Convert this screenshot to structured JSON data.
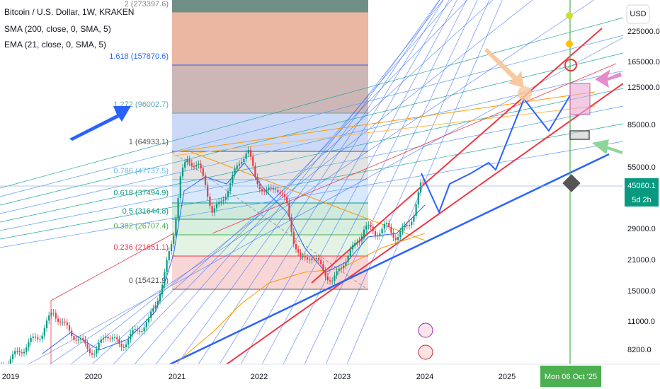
{
  "header": {
    "symbol": "Bitcoin / U.S. Dollar, 1W, KRAKEN",
    "indicators": [
      "SMA (200, close, 0, SMA, 5)",
      "EMA (21, close, 0, SMA, 5)"
    ]
  },
  "price_axis": {
    "currency": "USD",
    "labels": [
      "225000.0",
      "165000.0",
      "125000.0",
      "85000.0",
      "55000.0",
      "29000.0",
      "21000.0",
      "15000.0",
      "11000.0",
      "8200.0"
    ],
    "current_price": "45060.1",
    "countdown": "5d 2h"
  },
  "time_axis": {
    "labels": [
      "2019",
      "2020",
      "2021",
      "2022",
      "2023",
      "2024",
      "2025"
    ],
    "cursor_label": "Mon 06 Oct '25"
  },
  "fib_levels": [
    "2 (273397.6)",
    "1.618 (157870.6)",
    "1.272 (96002.7)",
    "1 (64933.1)",
    "0.786 (47737.5)",
    "0.618 (37494.9)",
    "0.5 (31644.8)",
    "0.382 (26707.4)",
    "0.236 (21651.1)",
    "0 (15421.9)"
  ]
}
